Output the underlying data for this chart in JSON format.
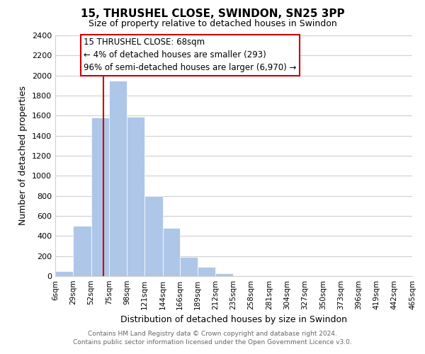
{
  "title": "15, THRUSHEL CLOSE, SWINDON, SN25 3PP",
  "subtitle": "Size of property relative to detached houses in Swindon",
  "xlabel": "Distribution of detached houses by size in Swindon",
  "ylabel": "Number of detached properties",
  "bar_edges": [
    6,
    29,
    52,
    75,
    98,
    121,
    144,
    166,
    189,
    212,
    235,
    258,
    281,
    304,
    327,
    350,
    373,
    396,
    419,
    442,
    465
  ],
  "bar_heights": [
    50,
    500,
    1580,
    1950,
    1590,
    800,
    480,
    190,
    90,
    30,
    0,
    0,
    0,
    0,
    0,
    0,
    0,
    0,
    0,
    0
  ],
  "bar_color": "#aec6e8",
  "bar_edge_color": "#aec6e8",
  "vline_x": 68,
  "vline_color": "#cc0000",
  "ylim": [
    0,
    2400
  ],
  "yticks": [
    0,
    200,
    400,
    600,
    800,
    1000,
    1200,
    1400,
    1600,
    1800,
    2000,
    2200,
    2400
  ],
  "xtick_labels": [
    "6sqm",
    "29sqm",
    "52sqm",
    "75sqm",
    "98sqm",
    "121sqm",
    "144sqm",
    "166sqm",
    "189sqm",
    "212sqm",
    "235sqm",
    "258sqm",
    "281sqm",
    "304sqm",
    "327sqm",
    "350sqm",
    "373sqm",
    "396sqm",
    "419sqm",
    "442sqm",
    "465sqm"
  ],
  "annotation_title": "15 THRUSHEL CLOSE: 68sqm",
  "annotation_line1": "← 4% of detached houses are smaller (293)",
  "annotation_line2": "96% of semi-detached houses are larger (6,970) →",
  "footer_line1": "Contains HM Land Registry data © Crown copyright and database right 2024.",
  "footer_line2": "Contains public sector information licensed under the Open Government Licence v3.0.",
  "background_color": "#ffffff",
  "grid_color": "#d0d0d0"
}
